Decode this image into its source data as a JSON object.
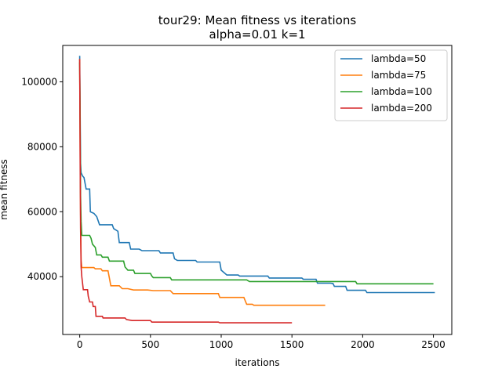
{
  "chart_data": {
    "type": "line",
    "title": "tour29: Mean fitness vs iterations",
    "subtitle": "alpha=0.01 k=1",
    "xlabel": "iterations",
    "ylabel": "mean fitness",
    "xlim": [
      -120,
      2630
    ],
    "ylim": [
      22200,
      111200
    ],
    "xticks": [
      0,
      500,
      1000,
      1500,
      2000,
      2500
    ],
    "yticks": [
      40000,
      60000,
      80000,
      100000
    ],
    "grid": false,
    "legend_position": "top-right",
    "series": [
      {
        "name": "lambda=50",
        "color": "#1f77b4",
        "points": [
          [
            0,
            108000
          ],
          [
            3,
            90000
          ],
          [
            6,
            75000
          ],
          [
            10,
            72000
          ],
          [
            20,
            71000
          ],
          [
            30,
            70500
          ],
          [
            45,
            67000
          ],
          [
            70,
            67000
          ],
          [
            75,
            60000
          ],
          [
            100,
            59500
          ],
          [
            120,
            58500
          ],
          [
            140,
            56000
          ],
          [
            230,
            56000
          ],
          [
            240,
            54800
          ],
          [
            270,
            54000
          ],
          [
            280,
            50500
          ],
          [
            350,
            50500
          ],
          [
            360,
            48500
          ],
          [
            420,
            48500
          ],
          [
            440,
            48000
          ],
          [
            560,
            48000
          ],
          [
            570,
            47300
          ],
          [
            660,
            47300
          ],
          [
            670,
            45500
          ],
          [
            690,
            45000
          ],
          [
            820,
            45000
          ],
          [
            830,
            44500
          ],
          [
            990,
            44500
          ],
          [
            1000,
            42000
          ],
          [
            1040,
            40500
          ],
          [
            1120,
            40500
          ],
          [
            1130,
            40200
          ],
          [
            1330,
            40200
          ],
          [
            1340,
            39600
          ],
          [
            1570,
            39600
          ],
          [
            1580,
            39200
          ],
          [
            1670,
            39200
          ],
          [
            1680,
            38000
          ],
          [
            1770,
            38000
          ],
          [
            1790,
            37900
          ],
          [
            1800,
            37000
          ],
          [
            1880,
            37000
          ],
          [
            1890,
            35800
          ],
          [
            2020,
            35800
          ],
          [
            2030,
            35100
          ],
          [
            2510,
            35100
          ]
        ]
      },
      {
        "name": "lambda=75",
        "color": "#ff7f0e",
        "points": [
          [
            0,
            107000
          ],
          [
            3,
            80000
          ],
          [
            6,
            60000
          ],
          [
            10,
            45000
          ],
          [
            15,
            42800
          ],
          [
            100,
            42800
          ],
          [
            110,
            42400
          ],
          [
            150,
            42400
          ],
          [
            160,
            41800
          ],
          [
            200,
            41800
          ],
          [
            220,
            37200
          ],
          [
            280,
            37200
          ],
          [
            300,
            36300
          ],
          [
            340,
            36300
          ],
          [
            380,
            35900
          ],
          [
            480,
            35900
          ],
          [
            520,
            35700
          ],
          [
            640,
            35700
          ],
          [
            660,
            34800
          ],
          [
            980,
            34800
          ],
          [
            990,
            33600
          ],
          [
            1160,
            33600
          ],
          [
            1180,
            31500
          ],
          [
            1220,
            31500
          ],
          [
            1230,
            31200
          ],
          [
            1735,
            31200
          ]
        ]
      },
      {
        "name": "lambda=100",
        "color": "#2ca02c",
        "points": [
          [
            0,
            106000
          ],
          [
            3,
            85000
          ],
          [
            6,
            65000
          ],
          [
            10,
            57000
          ],
          [
            15,
            52700
          ],
          [
            70,
            52700
          ],
          [
            80,
            51800
          ],
          [
            90,
            50000
          ],
          [
            110,
            49000
          ],
          [
            120,
            46700
          ],
          [
            150,
            46700
          ],
          [
            160,
            46000
          ],
          [
            200,
            46000
          ],
          [
            210,
            44800
          ],
          [
            310,
            44800
          ],
          [
            320,
            43000
          ],
          [
            340,
            42000
          ],
          [
            380,
            42000
          ],
          [
            390,
            41000
          ],
          [
            500,
            41000
          ],
          [
            510,
            40200
          ],
          [
            520,
            39700
          ],
          [
            640,
            39700
          ],
          [
            650,
            39000
          ],
          [
            1180,
            39000
          ],
          [
            1200,
            38500
          ],
          [
            1950,
            38500
          ],
          [
            1960,
            37800
          ],
          [
            2500,
            37800
          ]
        ]
      },
      {
        "name": "lambda=200",
        "color": "#d62728",
        "points": [
          [
            0,
            107000
          ],
          [
            3,
            75000
          ],
          [
            6,
            55000
          ],
          [
            10,
            43000
          ],
          [
            15,
            40000
          ],
          [
            25,
            36000
          ],
          [
            55,
            36000
          ],
          [
            60,
            34000
          ],
          [
            70,
            32200
          ],
          [
            90,
            32200
          ],
          [
            95,
            30800
          ],
          [
            110,
            30800
          ],
          [
            115,
            27800
          ],
          [
            160,
            27800
          ],
          [
            165,
            27300
          ],
          [
            320,
            27300
          ],
          [
            330,
            26800
          ],
          [
            370,
            26500
          ],
          [
            500,
            26500
          ],
          [
            510,
            26000
          ],
          [
            980,
            26000
          ],
          [
            990,
            25800
          ],
          [
            1500,
            25800
          ]
        ]
      }
    ]
  }
}
